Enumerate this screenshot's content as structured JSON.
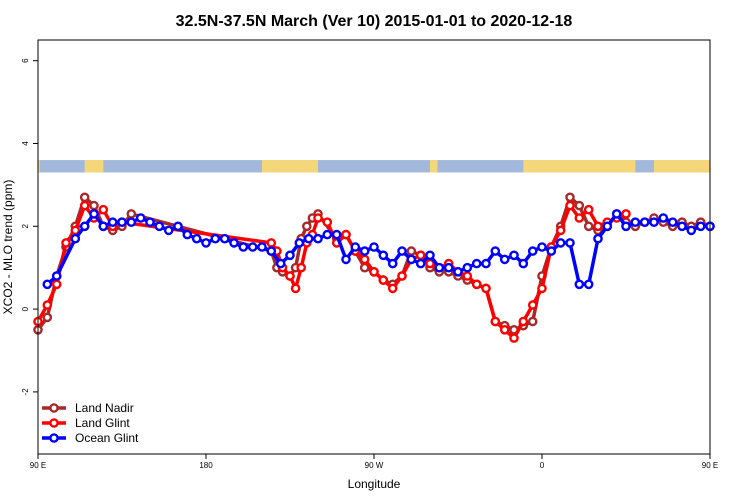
{
  "chart_data": {
    "type": "line",
    "title": "32.5N-37.5N March (Ver 10)   2015-01-01 to 2020-12-18",
    "xlabel": "Longitude",
    "ylabel": "XCO2 - MLO trend (ppm)",
    "xlim": [
      0,
      360
    ],
    "ylim": [
      -3.5,
      6.5
    ],
    "x_ticks": [
      {
        "value": 0,
        "label": "90 E"
      },
      {
        "value": 90,
        "label": "180"
      },
      {
        "value": 180,
        "label": "90 W"
      },
      {
        "value": 270,
        "label": "0"
      },
      {
        "value": 360,
        "label": "90 E"
      }
    ],
    "y_ticks": [
      {
        "value": -2,
        "label": "-2"
      },
      {
        "value": 0,
        "label": "0"
      },
      {
        "value": 2,
        "label": "2"
      },
      {
        "value": 4,
        "label": "4"
      },
      {
        "value": 6,
        "label": "6"
      }
    ],
    "legend_position": "bottom-left",
    "land_ocean_band": {
      "ymin": 3.3,
      "ymax": 3.6,
      "ocean_color": "#a3b9dc",
      "land_color": "#f5d77a",
      "land_segments": [
        [
          0,
          1
        ],
        [
          25,
          35
        ],
        [
          120,
          150
        ],
        [
          210,
          214
        ],
        [
          260,
          270
        ],
        [
          270,
          320
        ],
        [
          330,
          360
        ]
      ]
    },
    "series": [
      {
        "name": "Land Nadir",
        "color": "#a52a2a",
        "x": [
          0,
          5,
          10,
          15,
          20,
          25,
          30,
          35,
          40,
          45,
          50,
          125,
          128,
          131,
          135,
          138,
          141,
          144,
          147,
          150,
          160,
          165,
          170,
          175,
          180,
          185,
          190,
          195,
          200,
          205,
          210,
          215,
          220,
          225,
          230,
          235,
          240,
          245,
          250,
          255,
          260,
          265,
          270,
          275,
          280,
          285,
          290,
          295,
          300,
          305,
          310,
          315,
          320,
          325,
          330,
          335,
          340,
          345,
          350,
          355,
          360
        ],
        "values": [
          -0.5,
          -0.2,
          0.8,
          1.5,
          2.0,
          2.7,
          2.5,
          2.0,
          1.9,
          2.0,
          2.3,
          1.4,
          1.0,
          0.9,
          0.8,
          1.0,
          1.7,
          2.0,
          2.2,
          2.3,
          1.7,
          1.8,
          1.4,
          1.0,
          0.9,
          0.7,
          0.6,
          0.8,
          1.4,
          1.3,
          1.0,
          0.9,
          0.9,
          0.8,
          0.7,
          0.6,
          0.5,
          -0.3,
          -0.4,
          -0.5,
          -0.4,
          -0.3,
          0.8,
          1.5,
          2.0,
          2.7,
          2.5,
          2.0,
          1.9,
          2.0,
          2.3,
          2.1,
          2.0,
          2.1,
          2.2,
          2.1,
          2.0,
          2.1,
          2.0,
          2.1,
          2.0
        ]
      },
      {
        "name": "Land Glint",
        "color": "#ff0000",
        "x": [
          0,
          5,
          10,
          15,
          20,
          25,
          30,
          35,
          40,
          45,
          125,
          128,
          131,
          135,
          138,
          141,
          144,
          147,
          150,
          155,
          160,
          165,
          170,
          175,
          180,
          185,
          190,
          195,
          200,
          205,
          210,
          215,
          220,
          225,
          230,
          235,
          240,
          245,
          250,
          255,
          260,
          265,
          270,
          275,
          280,
          285,
          290,
          295,
          300,
          305,
          310,
          315
        ],
        "values": [
          -0.3,
          0.1,
          0.6,
          1.6,
          1.9,
          2.5,
          2.2,
          2.4,
          2.0,
          2.1,
          1.6,
          1.4,
          1.0,
          0.8,
          0.5,
          1.0,
          1.6,
          1.8,
          2.2,
          2.1,
          1.6,
          1.8,
          1.4,
          1.2,
          0.9,
          0.7,
          0.5,
          0.8,
          1.2,
          1.3,
          1.1,
          1.0,
          1.1,
          0.9,
          0.8,
          0.6,
          0.5,
          -0.3,
          -0.5,
          -0.7,
          -0.3,
          0.1,
          0.5,
          1.5,
          1.9,
          2.5,
          2.2,
          2.4,
          2.0,
          2.1,
          2.2,
          2.3
        ]
      },
      {
        "name": "Ocean Glint",
        "color": "#0000ff",
        "x": [
          5,
          10,
          20,
          25,
          30,
          35,
          40,
          45,
          50,
          55,
          60,
          65,
          70,
          75,
          80,
          85,
          90,
          95,
          100,
          105,
          110,
          115,
          120,
          125,
          130,
          135,
          140,
          145,
          150,
          155,
          160,
          165,
          170,
          175,
          180,
          185,
          190,
          195,
          200,
          205,
          210,
          215,
          220,
          225,
          230,
          235,
          240,
          245,
          250,
          255,
          260,
          265,
          270,
          275,
          280,
          285,
          290,
          295,
          300,
          305,
          310,
          315,
          320,
          325,
          330,
          335,
          340,
          345,
          350,
          355,
          360
        ],
        "values": [
          0.6,
          0.8,
          1.7,
          2.0,
          2.3,
          2.0,
          2.1,
          2.1,
          2.1,
          2.2,
          2.1,
          2.0,
          1.9,
          2.0,
          1.8,
          1.7,
          1.6,
          1.7,
          1.7,
          1.6,
          1.5,
          1.5,
          1.5,
          1.4,
          1.1,
          1.3,
          1.6,
          1.7,
          1.7,
          1.8,
          1.8,
          1.2,
          1.5,
          1.4,
          1.5,
          1.3,
          1.1,
          1.4,
          1.2,
          1.1,
          1.3,
          1.0,
          1.0,
          0.9,
          1.0,
          1.1,
          1.1,
          1.4,
          1.2,
          1.3,
          1.1,
          1.4,
          1.5,
          1.4,
          1.6,
          1.6,
          0.6,
          0.6,
          1.7,
          2.0,
          2.3,
          2.0,
          2.1,
          2.1,
          2.1,
          2.2,
          2.1,
          2.0,
          1.9,
          2.0,
          2.0
        ]
      }
    ]
  }
}
